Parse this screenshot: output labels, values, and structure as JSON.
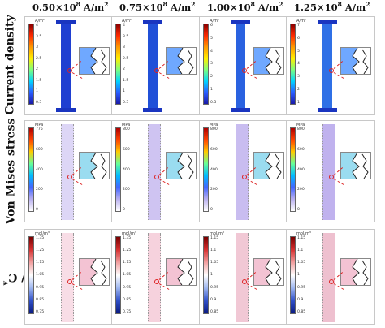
{
  "columns": [
    {
      "value": "0.50×10",
      "exp": "8",
      "unit": "A/m",
      "unit_exp": "2"
    },
    {
      "value": "0.75×10",
      "exp": "8",
      "unit": "A/m",
      "unit_exp": "2"
    },
    {
      "value": "1.00×10",
      "exp": "8",
      "unit": "A/m",
      "unit_exp": "2"
    },
    {
      "value": "1.25×10",
      "exp": "8",
      "unit": "A/m",
      "unit_exp": "2"
    }
  ],
  "rows": [
    {
      "label": "Current density"
    },
    {
      "label": "Von Mises stress"
    },
    {
      "label_prefix": "C",
      "label_prefix_sub": "v",
      "label_mid": " / C",
      "label_sub": "v0"
    }
  ],
  "colorbar_units": {
    "current": [
      "A/m²",
      "A/m²",
      "A/m²",
      "A/m²"
    ],
    "stress": [
      "MPa",
      "MPa",
      "MPa",
      "MPa"
    ],
    "vacancy": [
      "mol/m³",
      "mol/m³",
      "mol/m³",
      "mol/m³"
    ]
  },
  "colorbar_ticks": {
    "current": [
      [
        "4",
        "3.5",
        "3",
        "2.5",
        "2",
        "1.5",
        "1",
        "0.5"
      ],
      [
        "4",
        "3.5",
        "3",
        "2.5",
        "2",
        "1.5",
        "1",
        "0.5"
      ],
      [
        "6",
        "5",
        "4",
        "3",
        "2",
        "1",
        "0.5"
      ],
      [
        "7",
        "6",
        "5",
        "4",
        "3",
        "2",
        "1"
      ]
    ],
    "stress": [
      [
        "775",
        "600",
        "400",
        "200",
        "0"
      ],
      [
        "800",
        "600",
        "400",
        "200",
        "0"
      ],
      [
        "800",
        "600",
        "400",
        "200",
        "0"
      ],
      [
        "800",
        "600",
        "400",
        "200",
        "0"
      ]
    ],
    "vacancy": [
      [
        "1.35",
        "1.25",
        "1.15",
        "1.05",
        "0.95",
        "0.85",
        "0.75"
      ],
      [
        "1.35",
        "1.25",
        "1.15",
        "1.05",
        "0.95",
        "0.85",
        "0.75"
      ],
      [
        "1.15",
        "1.1",
        "1.05",
        "1",
        "0.95",
        "0.9",
        "0.85"
      ],
      [
        "1.15",
        "1.1",
        "1.05",
        "1",
        "0.95",
        "0.9",
        "0.85"
      ]
    ]
  },
  "colors": {
    "current_map": "#1f3fd1",
    "stress_map": "#cfc7f2",
    "vacancy_map": "#f6d6e0",
    "lead_line": "#dd2222"
  }
}
